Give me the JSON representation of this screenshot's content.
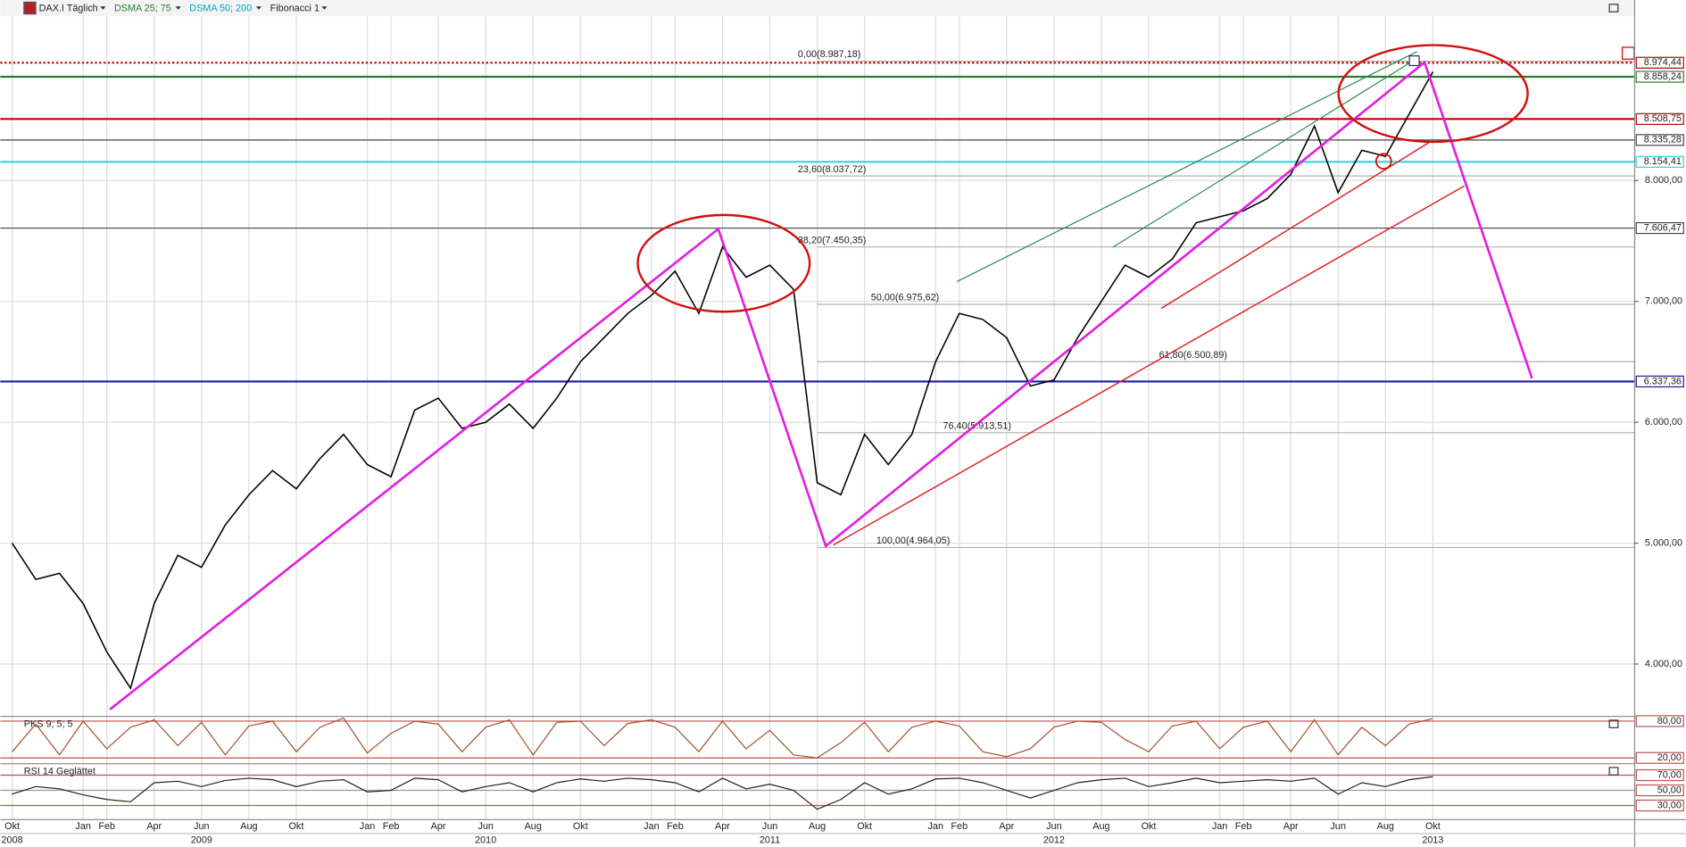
{
  "chart_data": [
    {
      "type": "line",
      "title": "DAX.I Täglich",
      "indicators": [
        {
          "label": "DSMA 25; 75",
          "color": "#2e7d32"
        },
        {
          "label": "DSMA 50; 200",
          "color": "#00a0c8"
        },
        {
          "label": "Fibonacci 1",
          "color": "#222222"
        }
      ],
      "x": [
        "2008-10",
        "2008-11",
        "2008-12",
        "2009-01",
        "2009-02",
        "2009-03",
        "2009-04",
        "2009-05",
        "2009-06",
        "2009-07",
        "2009-08",
        "2009-09",
        "2009-10",
        "2009-11",
        "2009-12",
        "2010-01",
        "2010-02",
        "2010-03",
        "2010-04",
        "2010-05",
        "2010-06",
        "2010-07",
        "2010-08",
        "2010-09",
        "2010-10",
        "2010-11",
        "2010-12",
        "2011-01",
        "2011-02",
        "2011-03",
        "2011-04",
        "2011-05",
        "2011-06",
        "2011-07",
        "2011-08",
        "2011-09",
        "2011-10",
        "2011-11",
        "2011-12",
        "2012-01",
        "2012-02",
        "2012-03",
        "2012-04",
        "2012-05",
        "2012-06",
        "2012-07",
        "2012-08",
        "2012-09",
        "2012-10",
        "2012-11",
        "2012-12",
        "2013-01",
        "2013-02",
        "2013-03",
        "2013-04",
        "2013-05",
        "2013-06",
        "2013-07",
        "2013-08",
        "2013-09",
        "2013-10"
      ],
      "values": [
        5000,
        4700,
        4750,
        4500,
        4100,
        3800,
        4500,
        4900,
        4800,
        5150,
        5400,
        5600,
        5450,
        5700,
        5900,
        5650,
        5550,
        6100,
        6200,
        5950,
        6000,
        6150,
        5950,
        6200,
        6500,
        6700,
        6900,
        7050,
        7250,
        6900,
        7450,
        7200,
        7300,
        7100,
        5500,
        5400,
        5900,
        5650,
        5900,
        6500,
        6900,
        6850,
        6700,
        6300,
        6350,
        6700,
        7000,
        7300,
        7200,
        7350,
        7650,
        7700,
        7750,
        7850,
        8050,
        8450,
        7900,
        8250,
        8200,
        8550,
        8900
      ],
      "color": "#000000",
      "xlim": [
        "2008-10",
        "2014-07"
      ],
      "xticks": [
        {
          "value": "2008-10",
          "label": "Okt"
        },
        {
          "value": "2009-01",
          "label": "Jan"
        },
        {
          "value": "2009-02",
          "label": "Feb"
        },
        {
          "value": "2009-04",
          "label": "Apr"
        },
        {
          "value": "2009-06",
          "label": "Jun"
        },
        {
          "value": "2009-08",
          "label": "Aug"
        },
        {
          "value": "2009-10",
          "label": "Okt"
        },
        {
          "value": "2010-01",
          "label": "Jan"
        },
        {
          "value": "2010-02",
          "label": "Feb"
        },
        {
          "value": "2010-04",
          "label": "Apr"
        },
        {
          "value": "2010-06",
          "label": "Jun"
        },
        {
          "value": "2010-08",
          "label": "Aug"
        },
        {
          "value": "2010-10",
          "label": "Okt"
        },
        {
          "value": "2011-01",
          "label": "Jan"
        },
        {
          "value": "2011-02",
          "label": "Feb"
        },
        {
          "value": "2011-04",
          "label": "Apr"
        },
        {
          "value": "2011-06",
          "label": "Jun"
        },
        {
          "value": "2011-08",
          "label": "Aug"
        },
        {
          "value": "2011-10",
          "label": "Okt"
        },
        {
          "value": "2012-01",
          "label": "Jan"
        },
        {
          "value": "2012-02",
          "label": "Feb"
        },
        {
          "value": "2012-04",
          "label": "Apr"
        },
        {
          "value": "2012-06",
          "label": "Jun"
        },
        {
          "value": "2012-08",
          "label": "Aug"
        },
        {
          "value": "2012-10",
          "label": "Okt"
        },
        {
          "value": "2013-01",
          "label": "Jan"
        },
        {
          "value": "2013-02",
          "label": "Feb"
        },
        {
          "value": "2013-04",
          "label": "Apr"
        },
        {
          "value": "2013-06",
          "label": "Jun"
        },
        {
          "value": "2013-08",
          "label": "Aug"
        },
        {
          "value": "2013-10",
          "label": "Okt"
        }
      ],
      "year_labels": [
        {
          "value": "2008-10",
          "label": "2008"
        },
        {
          "value": "2009-06",
          "label": "2009"
        },
        {
          "value": "2010-06",
          "label": "2010"
        },
        {
          "value": "2011-06",
          "label": "2011"
        },
        {
          "value": "2012-06",
          "label": "2012"
        },
        {
          "value": "2013-10",
          "label": "2013"
        }
      ],
      "ylim": [
        3580,
        9360
      ],
      "yticks": [
        {
          "value": 4000,
          "label": "4.000,00"
        },
        {
          "value": 5000,
          "label": "5.000,00"
        },
        {
          "value": 6000,
          "label": "6.000,00"
        },
        {
          "value": 7000,
          "label": "7.000,00"
        },
        {
          "value": 8000,
          "label": "8.000,00"
        }
      ],
      "grid": true,
      "levels": [
        {
          "value": 8974.44,
          "label": "8.974,44",
          "color": "#c00000",
          "style": "dotted"
        },
        {
          "value": 8858.24,
          "label": "8.858,24",
          "color": "#2e7d32",
          "style": "solid"
        },
        {
          "value": 8508.75,
          "label": "8.508,75",
          "color": "#c00000",
          "style": "solid"
        },
        {
          "value": 8335.28,
          "label": "8.335,28",
          "color": "#444444",
          "style": "solid"
        },
        {
          "value": 8154.41,
          "label": "8.154,41",
          "color": "#33d6d6",
          "style": "solid"
        },
        {
          "value": 7606.47,
          "label": "7.606,47",
          "color": "#444444",
          "style": "solid"
        },
        {
          "value": 6337.36,
          "label": "6.337,36",
          "color": "#1a1aa0",
          "style": "solid"
        }
      ],
      "fibonacci": [
        {
          "value": 8987.18,
          "label": "0,00(8.987,18)",
          "color": "#c00000"
        },
        {
          "value": 8037.72,
          "label": "23,60(8.037,72)",
          "color": "#999999"
        },
        {
          "value": 7450.35,
          "label": "38,20(7.450,35)",
          "color": "#000000"
        },
        {
          "value": 6975.62,
          "label": "50,00(6.975,62)",
          "color": "#2e7d32"
        },
        {
          "value": 6500.89,
          "label": "61,80(6.500,89)",
          "color": "#7a1a7a"
        },
        {
          "value": 5913.51,
          "label": "76,40(5.913,51)",
          "color": "#e040e0"
        },
        {
          "value": 4964.05,
          "label": "100,00(4.964,05)",
          "color": "#1a1aa0"
        }
      ]
    },
    {
      "type": "line",
      "title": "PKS 9; 5; 5",
      "color": "#a0522d",
      "values": [
        30,
        75,
        25,
        80,
        35,
        70,
        82,
        40,
        78,
        25,
        72,
        80,
        30,
        70,
        85,
        28,
        60,
        80,
        75,
        30,
        70,
        82,
        25,
        78,
        80,
        40,
        76,
        82,
        70,
        30,
        80,
        35,
        65,
        25,
        20,
        45,
        78,
        30,
        70,
        80,
        72,
        30,
        22,
        35,
        70,
        80,
        78,
        50,
        30,
        72,
        80,
        35,
        70,
        80,
        30,
        82,
        25,
        70,
        40,
        75,
        84
      ],
      "ylim": [
        15,
        85
      ],
      "yticks": [
        {
          "value": 80,
          "label": "80,00"
        },
        {
          "value": 20,
          "label": "20,00"
        }
      ]
    },
    {
      "type": "line",
      "title": "RSI 14 Geglättet",
      "color": "#222222",
      "values": [
        45,
        55,
        52,
        44,
        38,
        35,
        60,
        62,
        55,
        63,
        66,
        64,
        55,
        62,
        64,
        48,
        50,
        66,
        64,
        48,
        55,
        60,
        48,
        60,
        65,
        62,
        66,
        64,
        60,
        48,
        66,
        52,
        58,
        50,
        25,
        38,
        60,
        45,
        52,
        65,
        66,
        60,
        50,
        40,
        50,
        60,
        64,
        66,
        55,
        60,
        66,
        60,
        62,
        64,
        62,
        66,
        45,
        60,
        55,
        64,
        68
      ],
      "ylim": [
        15,
        83
      ],
      "yticks": [
        {
          "value": 70,
          "label": "70,00"
        },
        {
          "value": 50,
          "label": "50,00"
        },
        {
          "value": 30,
          "label": "30,00"
        }
      ]
    }
  ]
}
